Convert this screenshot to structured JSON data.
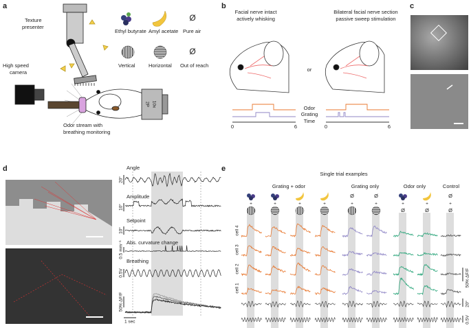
{
  "panels": {
    "a": {
      "label": "a",
      "texture_presenter": [
        "Texture",
        "presenter"
      ],
      "camera": [
        "High speed",
        "camera"
      ],
      "odor_stream": [
        "Odor stream with",
        "breathing monitoring"
      ],
      "odors": [
        "Ethyl butyrate",
        "Amyl acetate",
        "Pure air"
      ],
      "textures": [
        "Vertical",
        "Horizontal",
        "Out of reach"
      ],
      "null_symbol": "Ø",
      "objective": [
        "2P",
        "10x"
      ]
    },
    "b": {
      "label": "b",
      "left": [
        "Facial nerve intact",
        "actively whisking"
      ],
      "right": [
        "Bilateral facial nerve section",
        "passive sweep stimulation"
      ],
      "or": "or",
      "rows": [
        "Odor",
        "Grating",
        "Time"
      ],
      "time_ticks": [
        "0",
        "6"
      ]
    },
    "c": {
      "label": "c"
    },
    "d": {
      "label": "d",
      "traces": [
        "Angle",
        "Amplitude",
        "Setpoint",
        "Abs. curvature change",
        "Breathing"
      ],
      "scales": [
        "20°",
        "10°",
        "10°",
        "0.5 mm⁻¹",
        "0.5V",
        "50% ΔF/F"
      ],
      "time_scale": "1 sec"
    },
    "e": {
      "label": "e",
      "title": "Single trial examples",
      "groups": [
        "Grating + odor",
        "Grating only",
        "Odor only",
        "Control"
      ],
      "plus": "+",
      "null_symbol": "Ø",
      "cells": [
        "cell 4",
        "cell 3",
        "cell 2",
        "cell 1"
      ],
      "scales": [
        "50% ΔF/F",
        "20°",
        "0.5V"
      ]
    }
  }
}
